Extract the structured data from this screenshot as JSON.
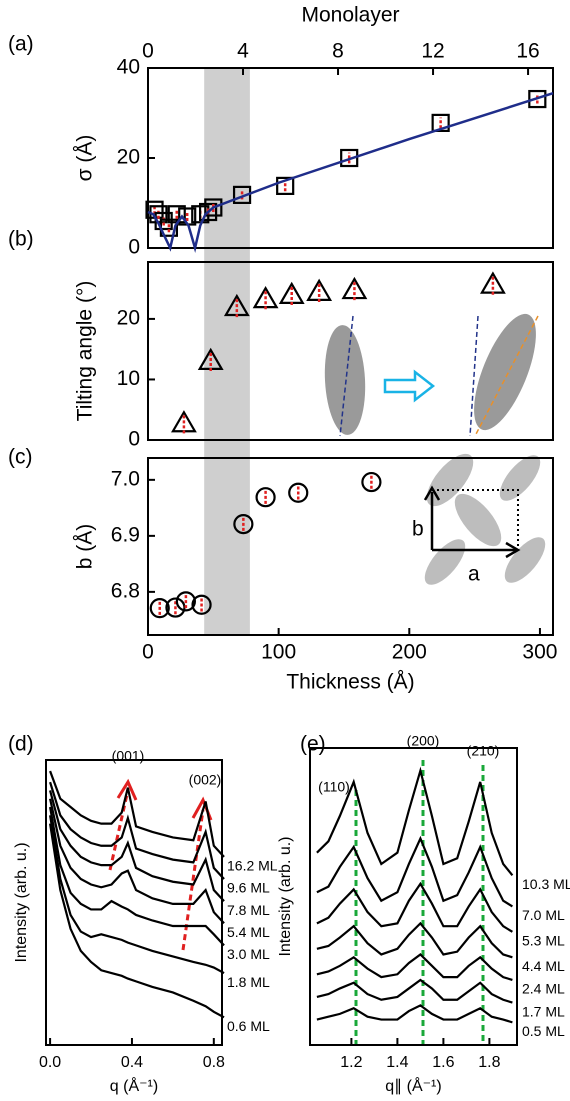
{
  "chart_data": [
    {
      "type": "scatter",
      "panel_label": "(a)",
      "ylabel": "σ (Å)",
      "x2label": "Monolayer",
      "xlim": [
        0,
        310
      ],
      "ylim": [
        0,
        40
      ],
      "yticks": [
        0,
        20,
        40
      ],
      "x2lim": [
        0,
        17.05
      ],
      "x2ticks": [
        0,
        4,
        8,
        12,
        16
      ],
      "highlight": [
        43,
        78
      ],
      "series": [
        {
          "marker": "square",
          "color": "#000000",
          "error_color": "#e02020",
          "x": [
            5,
            8,
            12,
            16,
            22,
            30,
            40,
            46,
            50,
            72,
            105,
            154,
            224,
            298
          ],
          "values": [
            8.5,
            7.5,
            6,
            4.5,
            7.5,
            7,
            7.5,
            8,
            9,
            11.8,
            13.8,
            20,
            27.8,
            33.1
          ],
          "errors": [
            1,
            1,
            1,
            1,
            1,
            1,
            1,
            1,
            1,
            1,
            1.2,
            1.2,
            1.2,
            1
          ]
        },
        {
          "mode": "line",
          "color": "#1f2d8a",
          "x": [
            0,
            4,
            8,
            12,
            17,
            21,
            26,
            31,
            36,
            40,
            44,
            50,
            100,
            200,
            310
          ],
          "values": [
            8,
            7.5,
            5.5,
            3,
            0,
            5,
            7,
            5,
            0,
            5,
            7.5,
            9,
            14.5,
            24.2,
            34.4
          ]
        }
      ]
    },
    {
      "type": "scatter",
      "panel_label": "(b)",
      "ylabel": "Tilting angle (°)",
      "xlim": [
        0,
        310
      ],
      "ylim": [
        0,
        29.4
      ],
      "yticks": [
        0,
        10,
        20
      ],
      "series": [
        {
          "marker": "triangle",
          "color": "#000000",
          "error_color": "#e02020",
          "x": [
            27.5,
            48,
            68,
            90,
            110,
            131,
            158,
            264
          ],
          "values": [
            2.6,
            12.9,
            21.8,
            23.1,
            23.8,
            24.3,
            24.6,
            25.5
          ],
          "errors": [
            1.5,
            1.5,
            1.5,
            1.5,
            1.5,
            1.5,
            1.5,
            1.5
          ]
        }
      ]
    },
    {
      "type": "scatter",
      "panel_label": "(c)",
      "ylabel": "b (Å)",
      "xlabel": "Thickness (Å)",
      "xlim": [
        0,
        310
      ],
      "xticks": [
        0,
        100,
        200,
        300
      ],
      "ylim": [
        6.723,
        7.039
      ],
      "yticks": [
        6.8,
        6.9,
        {
          "value": 7,
          "label": "7.0"
        }
      ],
      "inset_labels": [
        "b",
        "a"
      ],
      "series": [
        {
          "marker": "circle",
          "color": "#000000",
          "error_color": "#e02020",
          "x": [
            9,
            21,
            29,
            41,
            73,
            90,
            115,
            171
          ],
          "values": [
            6.771,
            6.772,
            6.783,
            6.777,
            6.921,
            6.969,
            6.977,
            6.996
          ],
          "errors": [
            0.012,
            0.012,
            0.012,
            0.012,
            0.012,
            0.012,
            0.012,
            0.012
          ]
        }
      ]
    },
    {
      "type": "line",
      "panel_label": "(d)",
      "ylabel": "Intensity (arb. u.)",
      "xlabel": "q (Å⁻¹)",
      "annotations": [
        "(001)",
        "(002)"
      ],
      "xlim": [
        -0.02,
        0.84
      ],
      "xticks": [
        {
          "value": 0,
          "label": "0.0"
        },
        0.4,
        0.8
      ],
      "ylim": [
        0,
        10.3
      ],
      "x": [
        0,
        0.05,
        0.1,
        0.15,
        0.2,
        0.25,
        0.3,
        0.35,
        0.38,
        0.42,
        0.5,
        0.6,
        0.7,
        0.76,
        0.8,
        0.85
      ],
      "series": [
        {
          "name": "16.2 ML",
          "color": "#000000",
          "values": [
            9.9,
            8.9,
            8.6,
            8.3,
            8.1,
            8.0,
            8.0,
            8.4,
            9.3,
            7.9,
            7.7,
            7.5,
            7.4,
            8.8,
            7.2,
            6.8
          ]
        },
        {
          "name": "9.6 ML",
          "color": "#000000",
          "values": [
            9.5,
            8.3,
            7.8,
            7.5,
            7.3,
            7.2,
            7.2,
            7.5,
            8.2,
            7.1,
            6.9,
            6.7,
            6.6,
            7.7,
            6.4,
            6.0
          ]
        },
        {
          "name": "7.8 ML",
          "color": "#000000",
          "values": [
            9.2,
            7.8,
            7.2,
            6.8,
            6.6,
            6.5,
            6.5,
            6.8,
            7.3,
            6.4,
            6.1,
            5.9,
            5.8,
            6.7,
            5.6,
            5.2
          ]
        },
        {
          "name": "5.4 ML",
          "color": "#000000",
          "values": [
            8.9,
            7.2,
            6.4,
            6.0,
            5.8,
            5.7,
            5.8,
            6.2,
            6.3,
            5.6,
            5.3,
            5.1,
            5.1,
            5.6,
            4.8,
            4.4
          ]
        },
        {
          "name": "3.0 ML",
          "color": "#000000",
          "values": [
            8.6,
            6.5,
            5.5,
            5.1,
            4.9,
            4.9,
            5.2,
            5.0,
            4.9,
            4.7,
            4.5,
            4.3,
            4.3,
            4.3,
            4.0,
            3.6
          ]
        },
        {
          "name": "1.8 ML",
          "color": "#000000",
          "values": [
            8.3,
            6.0,
            4.7,
            4.1,
            3.9,
            4.0,
            3.9,
            3.8,
            3.7,
            3.6,
            3.4,
            3.2,
            3.0,
            2.9,
            2.8,
            2.6
          ]
        },
        {
          "name": "0.6 ML",
          "color": "#000000",
          "values": [
            8.0,
            5.6,
            4.2,
            3.4,
            3.0,
            2.7,
            2.6,
            2.5,
            2.4,
            2.3,
            2.1,
            1.9,
            1.6,
            1.4,
            1.2,
            1.0
          ]
        }
      ]
    },
    {
      "type": "line",
      "panel_label": "(e)",
      "ylabel": "Intensity (arb. u.)",
      "xlabel": "q∥ (Å⁻¹)",
      "annotations": [
        "(110)",
        "(200)",
        "(210)"
      ],
      "xlim": [
        1.02,
        1.92
      ],
      "xticks": [
        1.2,
        1.4,
        1.6,
        1.8
      ],
      "ylim": [
        0,
        10.5
      ],
      "x": [
        1.05,
        1.1,
        1.15,
        1.21,
        1.27,
        1.33,
        1.4,
        1.45,
        1.5,
        1.55,
        1.6,
        1.66,
        1.71,
        1.76,
        1.81,
        1.86,
        1.9
      ],
      "series": [
        {
          "name": "10.3 ML",
          "color": "#000000",
          "values": [
            6.8,
            7.2,
            8.1,
            9.3,
            7.5,
            6.4,
            6.8,
            8.3,
            9.7,
            8.1,
            6.4,
            6.6,
            7.9,
            9.3,
            7.5,
            6.4,
            6.0
          ]
        },
        {
          "name": "7.0 ML",
          "color": "#000000",
          "values": [
            5.4,
            5.6,
            6.3,
            7.0,
            5.9,
            5.1,
            5.4,
            6.4,
            7.3,
            6.3,
            5.1,
            5.3,
            6.1,
            7.0,
            5.9,
            5.1,
            4.9
          ]
        },
        {
          "name": "5.3 ML",
          "color": "#000000",
          "values": [
            4.3,
            4.5,
            5.0,
            5.5,
            4.7,
            4.2,
            4.3,
            5.1,
            5.7,
            5.0,
            4.2,
            4.2,
            4.9,
            5.5,
            4.7,
            4.2,
            4.0
          ]
        },
        {
          "name": "4.4 ML",
          "color": "#000000",
          "values": [
            3.4,
            3.5,
            3.8,
            4.2,
            3.6,
            3.2,
            3.4,
            3.9,
            4.3,
            3.8,
            3.2,
            3.3,
            3.8,
            4.2,
            3.6,
            3.2,
            3.1
          ]
        },
        {
          "name": "2.4 ML",
          "color": "#000000",
          "values": [
            2.5,
            2.6,
            2.8,
            3.1,
            2.7,
            2.4,
            2.5,
            2.9,
            3.2,
            2.8,
            2.4,
            2.4,
            2.8,
            3.1,
            2.7,
            2.4,
            2.3
          ]
        },
        {
          "name": "1.7 ML",
          "color": "#000000",
          "values": [
            1.7,
            1.8,
            2.0,
            2.2,
            1.8,
            1.6,
            1.7,
            2.0,
            2.3,
            2.0,
            1.6,
            1.6,
            1.9,
            2.2,
            1.8,
            1.6,
            1.5
          ]
        },
        {
          "name": "0.5 ML",
          "color": "#000000",
          "values": [
            0.9,
            1.0,
            1.1,
            1.3,
            1.0,
            0.9,
            0.9,
            1.2,
            1.4,
            1.1,
            0.9,
            0.9,
            1.1,
            1.3,
            1.0,
            0.9,
            0.8
          ]
        }
      ]
    }
  ]
}
